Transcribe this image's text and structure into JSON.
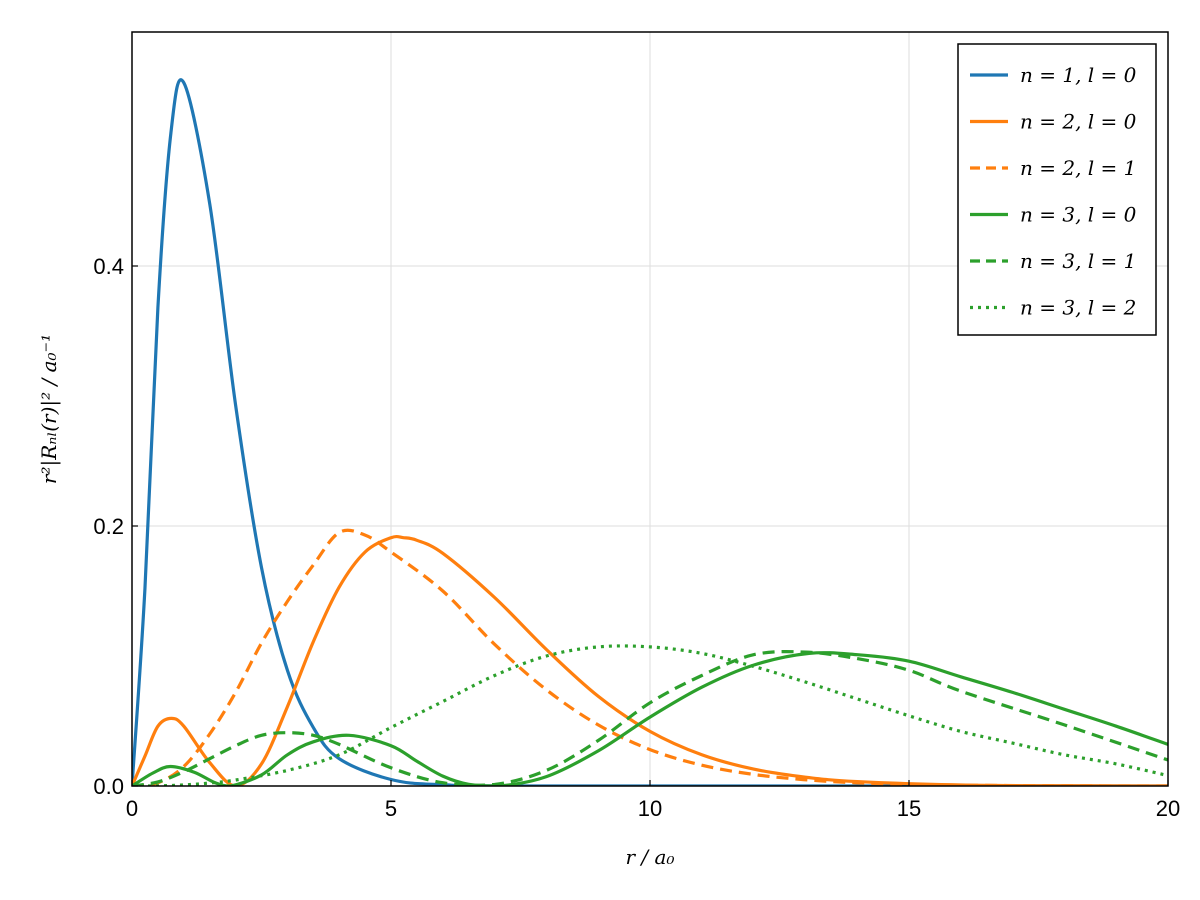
{
  "chart_data": {
    "type": "line",
    "title": "",
    "xlabel": "r / a₀",
    "ylabel": "r²|Rₙₗ(r)|² / a₀⁻¹",
    "xlim": [
      0,
      20
    ],
    "ylim": [
      0,
      0.58
    ],
    "xticks": [
      0,
      5,
      10,
      15,
      20
    ],
    "xtick_labels": [
      "0",
      "5",
      "10",
      "15",
      "20"
    ],
    "yticks": [
      0.0,
      0.2,
      0.4
    ],
    "ytick_labels": [
      "0.0",
      "0.2",
      "0.4"
    ],
    "grid": true,
    "legend_position": "top-right",
    "series": [
      {
        "name": "n = 1, l = 0",
        "color": "#1f77b4",
        "dash": "solid",
        "x": [
          0,
          0.25,
          0.5,
          0.75,
          1,
          1.5,
          2,
          2.5,
          3,
          3.5,
          4,
          5,
          6,
          8,
          20
        ],
        "y": [
          0,
          0.152,
          0.368,
          0.502,
          0.541,
          0.448,
          0.293,
          0.168,
          0.089,
          0.045,
          0.021,
          0.005,
          0.001,
          0,
          0
        ]
      },
      {
        "name": "n = 2, l = 0",
        "color": "#ff7f0e",
        "dash": "solid",
        "x": [
          0,
          0.25,
          0.5,
          0.76,
          1,
          1.5,
          2,
          2.5,
          3,
          3.5,
          4,
          4.5,
          5,
          5.24,
          5.5,
          6,
          7,
          8,
          9,
          10,
          11,
          12,
          13,
          14,
          16,
          18,
          20
        ],
        "y": [
          0,
          0.023,
          0.046,
          0.052,
          0.046,
          0.018,
          0,
          0.017,
          0.061,
          0.111,
          0.153,
          0.18,
          0.191,
          0.191,
          0.189,
          0.179,
          0.145,
          0.105,
          0.069,
          0.042,
          0.024,
          0.013,
          0.0068,
          0.0034,
          0.0008,
          0.00017,
          3e-05
        ]
      },
      {
        "name": "n = 2, l = 1",
        "color": "#ff7f0e",
        "dash": "dashed",
        "x": [
          0,
          0.5,
          1,
          1.5,
          2,
          2.5,
          3,
          3.5,
          4,
          4.5,
          5,
          6,
          7,
          8,
          9,
          10,
          11,
          12,
          13,
          14,
          15,
          16,
          18,
          20
        ],
        "y": [
          0,
          0.0025,
          0.015,
          0.04,
          0.072,
          0.11,
          0.142,
          0.17,
          0.195,
          0.193,
          0.18,
          0.15,
          0.109,
          0.074,
          0.047,
          0.028,
          0.016,
          0.0089,
          0.0048,
          0.0024,
          0.0012,
          0.0006,
          0.00013,
          3e-05
        ]
      },
      {
        "name": "n = 3, l = 0",
        "color": "#2ca02c",
        "dash": "solid",
        "x": [
          0,
          0.4,
          0.74,
          1.2,
          1.6,
          1.9,
          2.5,
          3,
          3.5,
          4.19,
          5,
          5.5,
          6,
          6.5,
          7.1,
          8,
          9,
          10,
          11,
          12,
          13.07,
          14,
          15,
          16,
          17,
          18,
          19,
          20
        ],
        "y": [
          0,
          0.0099,
          0.015,
          0.0106,
          0.0026,
          0,
          0.0085,
          0.024,
          0.034,
          0.039,
          0.031,
          0.019,
          0.0076,
          0.0013,
          0,
          0.0072,
          0.027,
          0.053,
          0.076,
          0.093,
          0.102,
          0.101,
          0.096,
          0.084,
          0.072,
          0.059,
          0.046,
          0.032
        ]
      },
      {
        "name": "n = 3, l = 1",
        "color": "#2ca02c",
        "dash": "dashed",
        "x": [
          0,
          0.5,
          1,
          1.5,
          2,
          2.5,
          3,
          3.5,
          4,
          5,
          6,
          7,
          8,
          9,
          10,
          11,
          12,
          13,
          14,
          15,
          16,
          18,
          20
        ],
        "y": [
          0,
          0.0031,
          0.011,
          0.021,
          0.031,
          0.039,
          0.041,
          0.039,
          0.032,
          0.014,
          0.0025,
          0.0012,
          0.012,
          0.035,
          0.064,
          0.085,
          0.101,
          0.103,
          0.098,
          0.089,
          0.073,
          0.047,
          0.02
        ]
      },
      {
        "name": "n = 3, l = 2",
        "color": "#2ca02c",
        "dash": "dotted",
        "x": [
          0,
          0.5,
          1,
          1.5,
          2,
          3,
          4,
          5,
          6,
          7,
          8,
          9,
          10,
          11,
          12,
          13,
          14,
          15,
          16,
          17,
          18,
          19,
          20
        ],
        "y": [
          0,
          0.0001,
          0.0008,
          0.0023,
          0.0046,
          0.012,
          0.024,
          0.045,
          0.065,
          0.085,
          0.1,
          0.107,
          0.107,
          0.102,
          0.092,
          0.08,
          0.067,
          0.054,
          0.042,
          0.033,
          0.024,
          0.017,
          0.008
        ]
      }
    ]
  }
}
